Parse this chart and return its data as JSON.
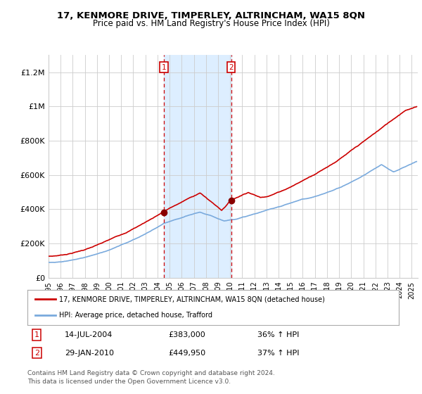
{
  "title": "17, KENMORE DRIVE, TIMPERLEY, ALTRINCHAM, WA15 8QN",
  "subtitle": "Price paid vs. HM Land Registry's House Price Index (HPI)",
  "legend_line1": "17, KENMORE DRIVE, TIMPERLEY, ALTRINCHAM, WA15 8QN (detached house)",
  "legend_line2": "HPI: Average price, detached house, Trafford",
  "annotation1_date": "14-JUL-2004",
  "annotation1_price": "£383,000",
  "annotation1_hpi": "36% ↑ HPI",
  "annotation2_date": "29-JAN-2010",
  "annotation2_price": "£449,950",
  "annotation2_hpi": "37% ↑ HPI",
  "footnote1": "Contains HM Land Registry data © Crown copyright and database right 2024.",
  "footnote2": "This data is licensed under the Open Government Licence v3.0.",
  "sale1_year": 2004.54,
  "sale2_year": 2010.08,
  "sale1_price": 383000,
  "sale2_price": 449950,
  "red_color": "#cc0000",
  "blue_color": "#7aaadd",
  "shading_color": "#ddeeff",
  "annotation_box_color": "#cc0000",
  "ylim_max": 1300000,
  "xlim_start": 1995,
  "xlim_end": 2025.5,
  "background_color": "#ffffff",
  "grid_color": "#cccccc",
  "yticks": [
    0,
    200000,
    400000,
    600000,
    800000,
    1000000,
    1200000
  ],
  "ylabels": [
    "£0",
    "£200K",
    "£400K",
    "£600K",
    "£800K",
    "£1M",
    "£1.2M"
  ]
}
